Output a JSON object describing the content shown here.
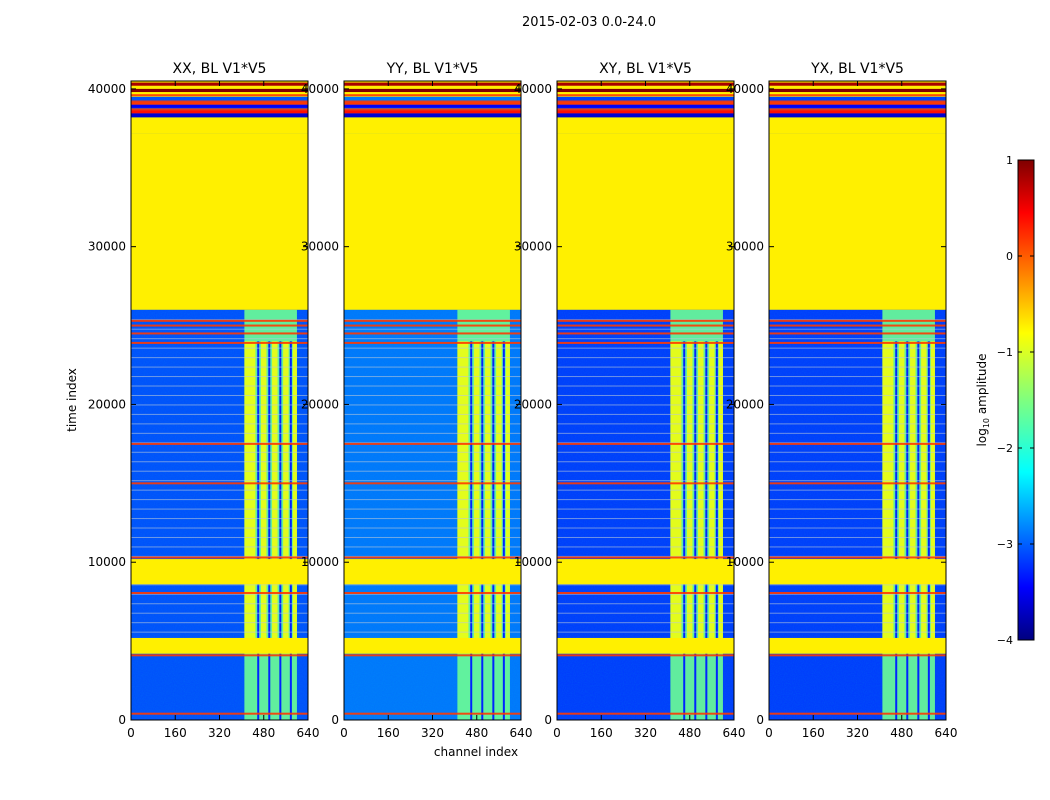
{
  "figure": {
    "suptitle": "2015-02-03 0.0-24.0",
    "xlabel": "channel index",
    "ylabel": "time index"
  },
  "colorbar": {
    "label_prefix": "log",
    "label_sub": "10",
    "label_suffix": " amplitude",
    "range": [
      -4,
      1
    ],
    "ticks": [
      "1",
      "0",
      "−1",
      "−2",
      "−3",
      "−4"
    ],
    "tick_values": [
      1,
      0,
      -1,
      -2,
      -3,
      -4
    ],
    "colormap": "jet",
    "colors": [
      "#00007f",
      "#0000ff",
      "#007fff",
      "#00ffff",
      "#7fff7f",
      "#ffff00",
      "#ff7f00",
      "#ff0000",
      "#7f0000"
    ]
  },
  "chart_data": [
    {
      "type": "heatmap",
      "title": "XX, BL V1*V5",
      "xlabel": "channel index",
      "ylabel": "time index",
      "xlim": [
        0,
        640
      ],
      "ylim": [
        0,
        40500
      ],
      "xticks": [
        0,
        160,
        320,
        480,
        640
      ],
      "yticks": [
        0,
        10000,
        20000,
        30000,
        40000
      ],
      "rfi_band_channels": [
        410,
        600
      ],
      "flagged_block_time": [
        26000,
        37200
      ],
      "mean_log10_amplitude_background": -3.0,
      "mean_log10_amplitude_flagged": -0.8
    },
    {
      "type": "heatmap",
      "title": "YY, BL V1*V5",
      "xlim": [
        0,
        640
      ],
      "ylim": [
        0,
        40500
      ],
      "xticks": [
        0,
        160,
        320,
        480,
        640
      ],
      "yticks": [
        0,
        10000,
        20000,
        30000,
        40000
      ],
      "rfi_band_channels": [
        410,
        600
      ],
      "flagged_block_time": [
        26000,
        37200
      ],
      "mean_log10_amplitude_background": -2.8,
      "mean_log10_amplitude_flagged": -0.8
    },
    {
      "type": "heatmap",
      "title": "XY, BL V1*V5",
      "xlim": [
        0,
        640
      ],
      "ylim": [
        0,
        40500
      ],
      "xticks": [
        0,
        160,
        320,
        480,
        640
      ],
      "yticks": [
        0,
        10000,
        20000,
        30000,
        40000
      ],
      "rfi_band_channels": [
        410,
        600
      ],
      "flagged_block_time": [
        26000,
        37200
      ],
      "mean_log10_amplitude_background": -3.1,
      "mean_log10_amplitude_flagged": -0.8
    },
    {
      "type": "heatmap",
      "title": "YX, BL V1*V5",
      "xlim": [
        0,
        640
      ],
      "ylim": [
        0,
        40500
      ],
      "xticks": [
        0,
        160,
        320,
        480,
        640
      ],
      "yticks": [
        0,
        10000,
        20000,
        30000,
        40000
      ],
      "rfi_band_channels": [
        410,
        600
      ],
      "flagged_block_time": [
        26000,
        37200
      ],
      "mean_log10_amplitude_background": -3.1,
      "mean_log10_amplitude_flagged": -0.8
    }
  ],
  "features": {
    "flag_bands_time": [
      [
        4200,
        5200
      ],
      [
        8600,
        10200
      ],
      [
        37200,
        38200
      ],
      [
        39500,
        40500
      ]
    ],
    "orange_lines_time": [
      400,
      4100,
      8050,
      10300,
      15000,
      17500,
      23900,
      24500,
      25000,
      25300,
      38700,
      39200,
      39600
    ],
    "rfi_strip_channels": [
      [
        410,
        450
      ],
      [
        470,
        490
      ],
      [
        510,
        530
      ],
      [
        550,
        570
      ],
      [
        585,
        600
      ]
    ]
  }
}
